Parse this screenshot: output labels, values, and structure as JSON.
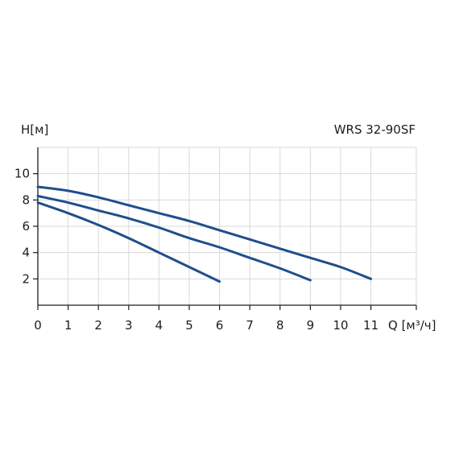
{
  "chart_data": {
    "type": "line",
    "title": "WRS 32-90SF",
    "ylabel": "H[м]",
    "xlabel": "Q [м³/ч]",
    "xlim": [
      0,
      12.5
    ],
    "ylim": [
      0,
      12
    ],
    "xticks": [
      0,
      1,
      2,
      3,
      4,
      5,
      6,
      7,
      8,
      9,
      10,
      11
    ],
    "yticks": [
      2,
      4,
      6,
      8,
      10
    ],
    "grid": true,
    "line_color": "#1f4e8c",
    "series": [
      {
        "x": [
          0,
          1,
          2,
          3,
          4,
          5,
          6,
          7,
          8,
          9,
          10,
          11
        ],
        "y": [
          9.0,
          8.7,
          8.2,
          7.6,
          7.0,
          6.4,
          5.7,
          5.0,
          4.3,
          3.6,
          2.9,
          2.0
        ]
      },
      {
        "x": [
          0,
          1,
          2,
          3,
          4,
          5,
          6,
          7,
          8,
          9
        ],
        "y": [
          8.3,
          7.8,
          7.2,
          6.6,
          5.9,
          5.1,
          4.4,
          3.6,
          2.8,
          1.9
        ]
      },
      {
        "x": [
          0,
          1,
          2,
          3,
          4,
          5,
          6
        ],
        "y": [
          7.8,
          7.0,
          6.1,
          5.1,
          4.0,
          2.9,
          1.8
        ]
      }
    ]
  }
}
